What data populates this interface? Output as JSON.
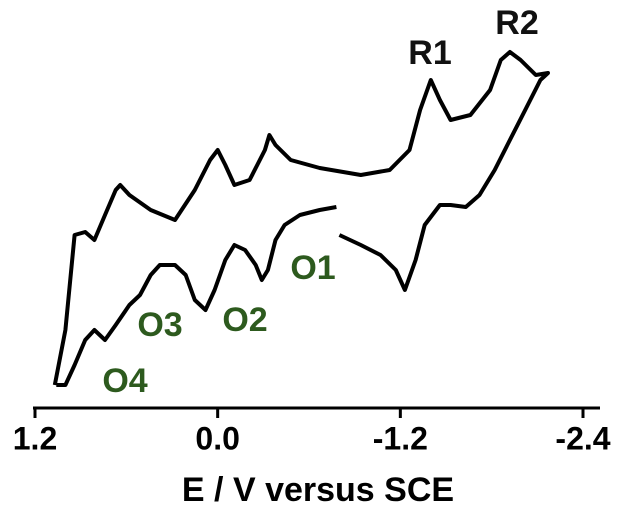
{
  "chart_data": {
    "type": "line",
    "x_label": "E / V versus SCE",
    "xlim": [
      1.2,
      -2.4
    ],
    "xticks": [
      1.2,
      {
        "value": 0,
        "label": "0.0"
      },
      -1.2,
      -2.4
    ],
    "ylim": [
      0,
      100
    ],
    "series": [
      {
        "color": "#000000",
        "x": [
          1.07,
          1.0,
          0.94,
          0.87,
          0.81,
          0.74,
          0.67,
          0.64,
          0.58,
          0.44,
          0.28,
          0.15,
          0.05,
          0.0,
          -0.05,
          -0.11,
          -0.21,
          -0.31,
          -0.34,
          -0.38,
          -0.48,
          -0.67,
          -0.94,
          -1.13,
          -1.26,
          -1.33,
          -1.4,
          -1.46,
          -1.53,
          -1.66,
          -1.79,
          -1.86,
          -1.92,
          -1.99,
          -2.09,
          -2.17,
          -2.12,
          -2.02,
          -1.92,
          -1.82,
          -1.72,
          -1.63,
          -1.53,
          -1.46,
          -1.36,
          -1.3,
          -1.23,
          -1.17,
          -1.07,
          -0.94,
          -0.8,
          null,
          -0.78,
          -0.67,
          -0.54,
          -0.44,
          -0.38,
          -0.33,
          -0.29,
          -0.25,
          -0.18,
          -0.11,
          -0.05,
          0.02,
          0.08,
          0.15,
          0.21,
          0.28,
          0.38,
          0.44,
          0.51,
          0.58,
          0.67,
          0.74,
          0.81,
          0.87,
          0.94,
          1.0,
          1.06
        ],
        "values": [
          6.25,
          20,
          43.75,
          44.5,
          42.5,
          48.75,
          55,
          56.25,
          53.75,
          50,
          47.5,
          55,
          62.5,
          65,
          61.25,
          56.25,
          57.5,
          65,
          68.75,
          66.25,
          62.5,
          60.5,
          58.75,
          60,
          65,
          75,
          82.5,
          77.5,
          72.5,
          73.75,
          80,
          87.5,
          89.5,
          87.5,
          83.75,
          84.25,
          82.5,
          75,
          67.5,
          60,
          53.75,
          50.75,
          51.25,
          51.25,
          46.25,
          37.5,
          30,
          35,
          38.75,
          41.25,
          43.75,
          null,
          50.75,
          50,
          48.75,
          46.25,
          42.5,
          35,
          32.5,
          36.25,
          40,
          41.25,
          37.5,
          30,
          25,
          27.5,
          33.75,
          36.25,
          36.25,
          33.75,
          28.75,
          26.25,
          21.25,
          17.5,
          20,
          17.5,
          11.25,
          6.25,
          6.25
        ]
      }
    ],
    "annotations": [
      {
        "text": "R1",
        "color": "#111111"
      },
      {
        "text": "R2",
        "color": "#111111"
      },
      {
        "text": "O1",
        "color": "#2d5a1e"
      },
      {
        "text": "O2",
        "color": "#2d5a1e"
      },
      {
        "text": "O3",
        "color": "#2d5a1e"
      },
      {
        "text": "O4",
        "color": "#2d5a1e"
      }
    ]
  }
}
